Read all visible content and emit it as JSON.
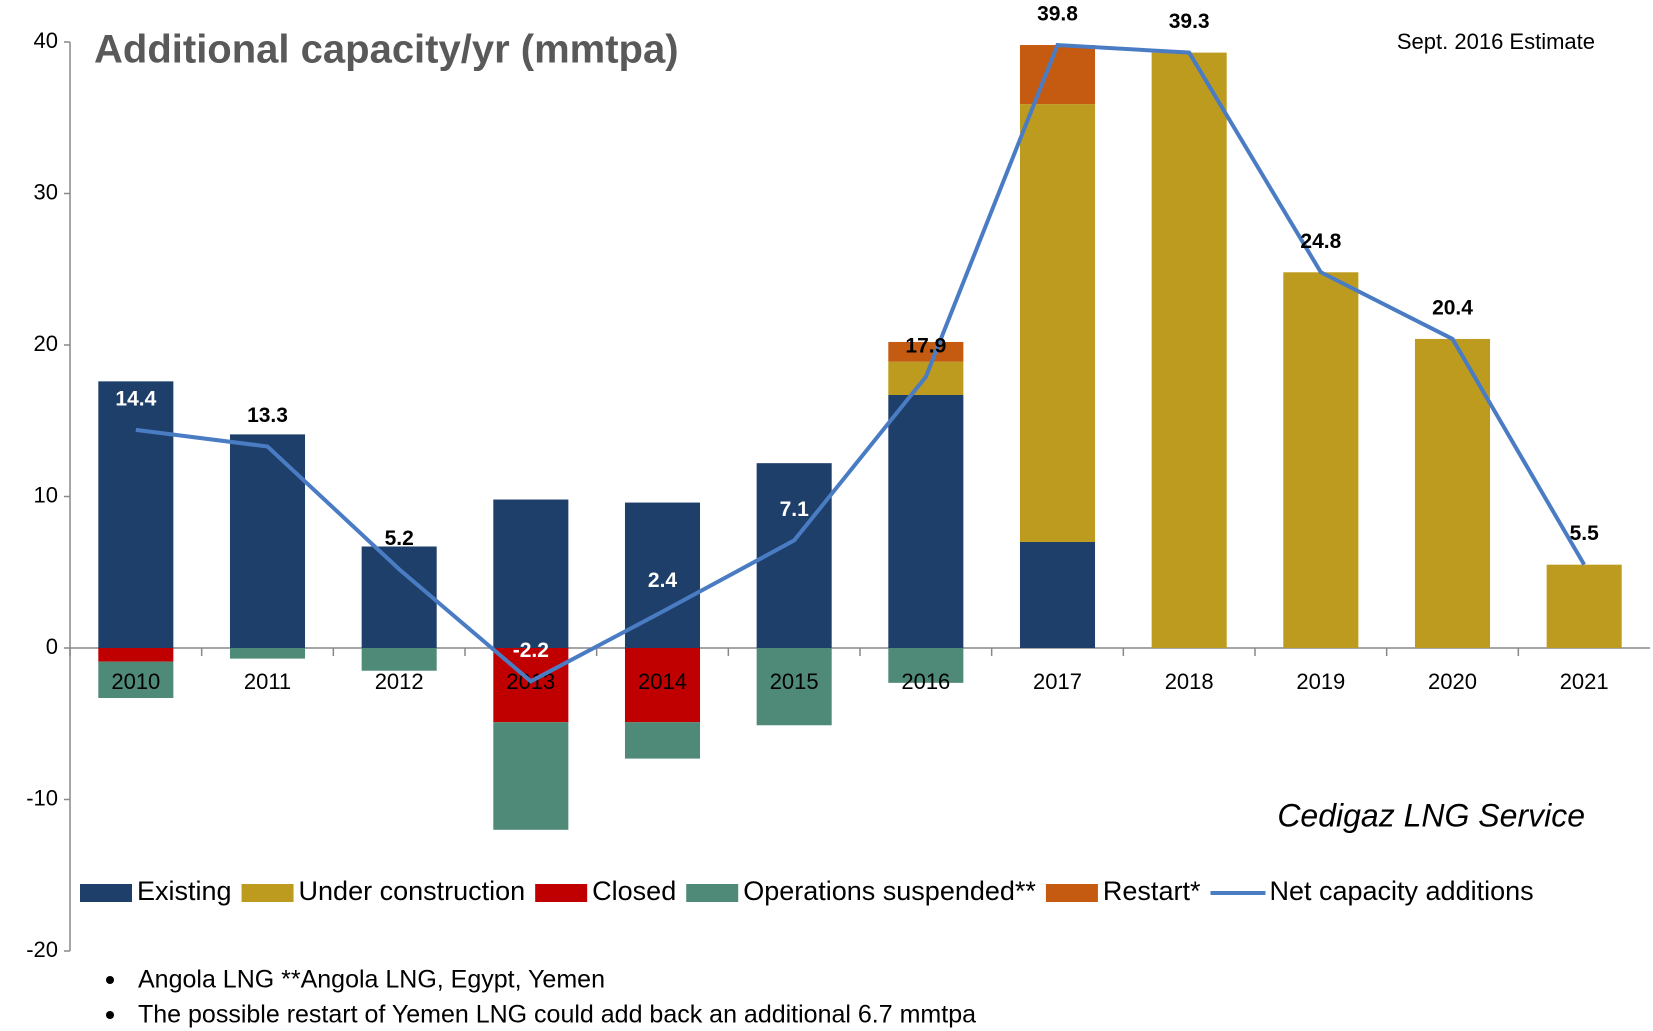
{
  "chart_data": {
    "type": "bar",
    "title": "Additional capacity/yr (mmtpa)",
    "annotation": "Sept. 2016 Estimate",
    "source": "Cedigaz LNG Service",
    "footnotes": [
      "Angola LNG **Angola LNG, Egypt, Yemen",
      "The possible restart of Yemen LNG could add back an additional 6.7 mmtpa"
    ],
    "stacked": true,
    "categories": [
      "2010",
      "2011",
      "2012",
      "2013",
      "2014",
      "2015",
      "2016",
      "2017",
      "2018",
      "2019",
      "2020",
      "2021"
    ],
    "series": [
      {
        "name": "Existing",
        "color": "#1f3f6b",
        "values": [
          17.6,
          14.1,
          6.7,
          9.8,
          9.6,
          12.2,
          16.7,
          7.0,
          null,
          null,
          null,
          null
        ]
      },
      {
        "name": "Under construction",
        "color": "#bd9b1e",
        "values": [
          null,
          null,
          null,
          null,
          null,
          null,
          2.2,
          28.9,
          39.3,
          24.8,
          20.4,
          5.5
        ]
      },
      {
        "name": "Closed",
        "color": "#c00000",
        "values": [
          -0.9,
          null,
          null,
          -4.9,
          -4.9,
          null,
          null,
          null,
          null,
          null,
          null,
          null
        ]
      },
      {
        "name": "Operations suspended**",
        "color": "#4f8a78",
        "values": [
          -2.4,
          -0.7,
          -1.5,
          -7.1,
          -2.4,
          -5.1,
          -2.3,
          null,
          null,
          null,
          null,
          null
        ]
      },
      {
        "name": "Restart*",
        "color": "#c55a11",
        "values": [
          null,
          null,
          null,
          null,
          null,
          null,
          1.3,
          3.9,
          null,
          null,
          null,
          null
        ]
      },
      {
        "name": "Net capacity additions",
        "color": "#4a7cc4",
        "kind": "line",
        "values": [
          14.4,
          13.3,
          5.2,
          -2.2,
          2.4,
          7.1,
          17.9,
          39.8,
          39.3,
          24.8,
          20.4,
          5.5
        ],
        "value_label_colors": [
          "#ffffff",
          "#000000",
          "#000000",
          "#ffffff",
          "#ffffff",
          "#ffffff",
          "#000000",
          "#000000",
          "#000000",
          "#000000",
          "#000000",
          "#000000"
        ]
      }
    ],
    "ylim": [
      -20,
      40
    ],
    "yticks": [
      -20,
      -10,
      0,
      10,
      20,
      30,
      40
    ],
    "grid": false,
    "legend": "bottom"
  }
}
